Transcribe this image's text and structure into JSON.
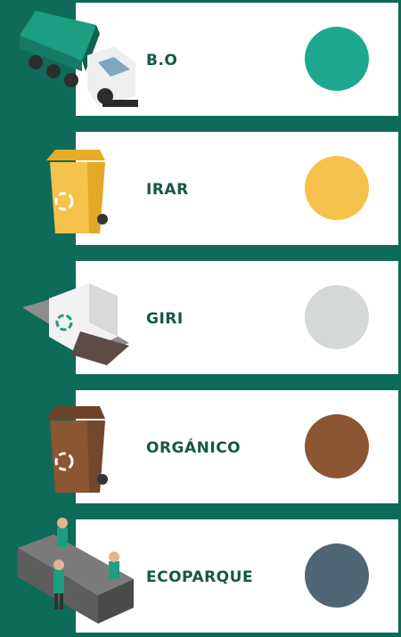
{
  "items": [
    {
      "label": "B.O",
      "color": "#1fa890"
    },
    {
      "label": "IRAR",
      "color": "#f6c24c"
    },
    {
      "label": "GIRI",
      "color": "#d5d8d8"
    },
    {
      "label": "ORGÁNICO",
      "color": "#8b5631"
    },
    {
      "label": "ECOPARQUE",
      "color": "#4f6677"
    }
  ]
}
